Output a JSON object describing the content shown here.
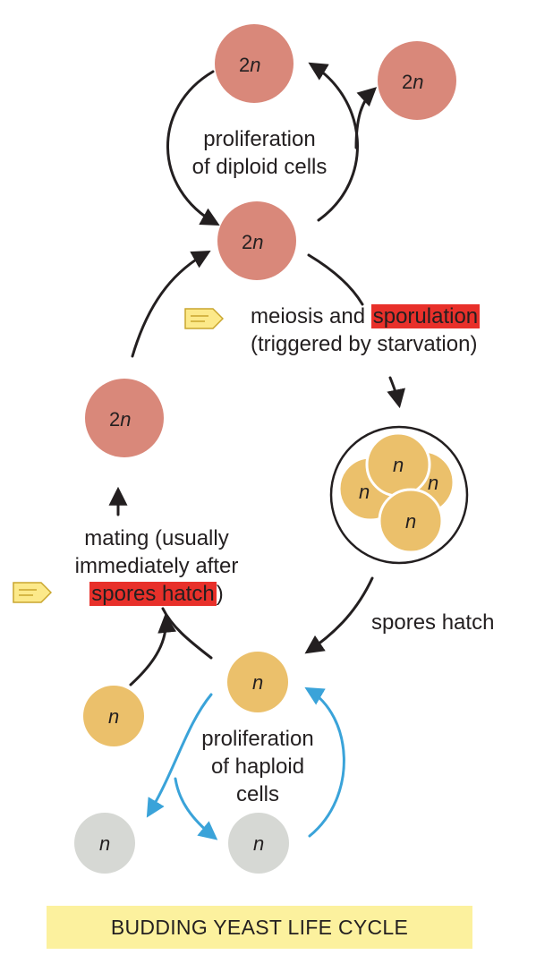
{
  "title": "BUDDING YEAST LIFE CYCLE",
  "labels": {
    "proliferation_diploid_1": "proliferation",
    "proliferation_diploid_2": "of diploid cells",
    "meiosis_1a": "meiosis and ",
    "meiosis_1b": "sporulation",
    "meiosis_2": "(triggered by starvation)",
    "spores_hatch": "spores hatch",
    "mating_1": "mating (usually",
    "mating_2": "immediately after",
    "mating_3a": "spores hatch",
    "mating_3b": ")",
    "proliferation_haploid_1": "proliferation",
    "proliferation_haploid_2": "of haploid",
    "proliferation_haploid_3": "cells"
  },
  "cells": {
    "diploid_num": "2",
    "ploidy_symbol": "n"
  },
  "colors": {
    "diploid": "#d9887a",
    "haploid": "#ebc06b",
    "haploid_grey": "#d6d8d4",
    "arrow_black": "#231f20",
    "arrow_blue": "#3aa3d9",
    "highlight": "#e8302a",
    "title_bg": "#fcf19e",
    "note_icon": "#fce98a"
  },
  "icons": [
    "note-icon",
    "note-icon"
  ]
}
